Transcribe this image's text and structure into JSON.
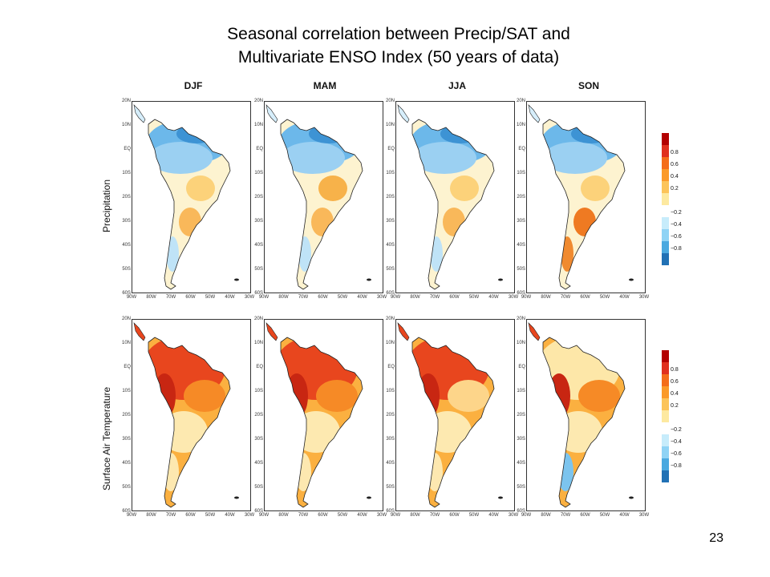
{
  "title_line1": "Seasonal correlation between Precip/SAT and",
  "title_line2": "Multivariate ENSO Index (50 years of data)",
  "seasons": [
    "DJF",
    "MAM",
    "JJA",
    "SON"
  ],
  "rows": [
    {
      "label": "Precipitation",
      "theme": [
        "blue",
        "blue",
        "blue",
        "blue"
      ]
    },
    {
      "label": "Surface Air Temperature",
      "theme": [
        "red",
        "red",
        "red",
        "red"
      ]
    }
  ],
  "lat_labels": [
    "20N",
    "10N",
    "EQ",
    "10S",
    "20S",
    "30S",
    "40S",
    "50S",
    "60S"
  ],
  "lon_labels": [
    "90W",
    "80W",
    "70W",
    "60W",
    "50W",
    "40W",
    "30W"
  ],
  "colorbar": {
    "labels": [
      "0.8",
      "0.6",
      "0.4",
      "0.2",
      "−0.2",
      "−0.4",
      "−0.6",
      "−0.8"
    ],
    "colors": [
      "#b30000",
      "#e0301e",
      "#f46d1a",
      "#fb9a29",
      "#fcc45a",
      "#fde9a0",
      "#ffffff",
      "#c7ecfb",
      "#8fd3f5",
      "#4aa9e0",
      "#2171b5"
    ]
  },
  "page_number": "23"
}
